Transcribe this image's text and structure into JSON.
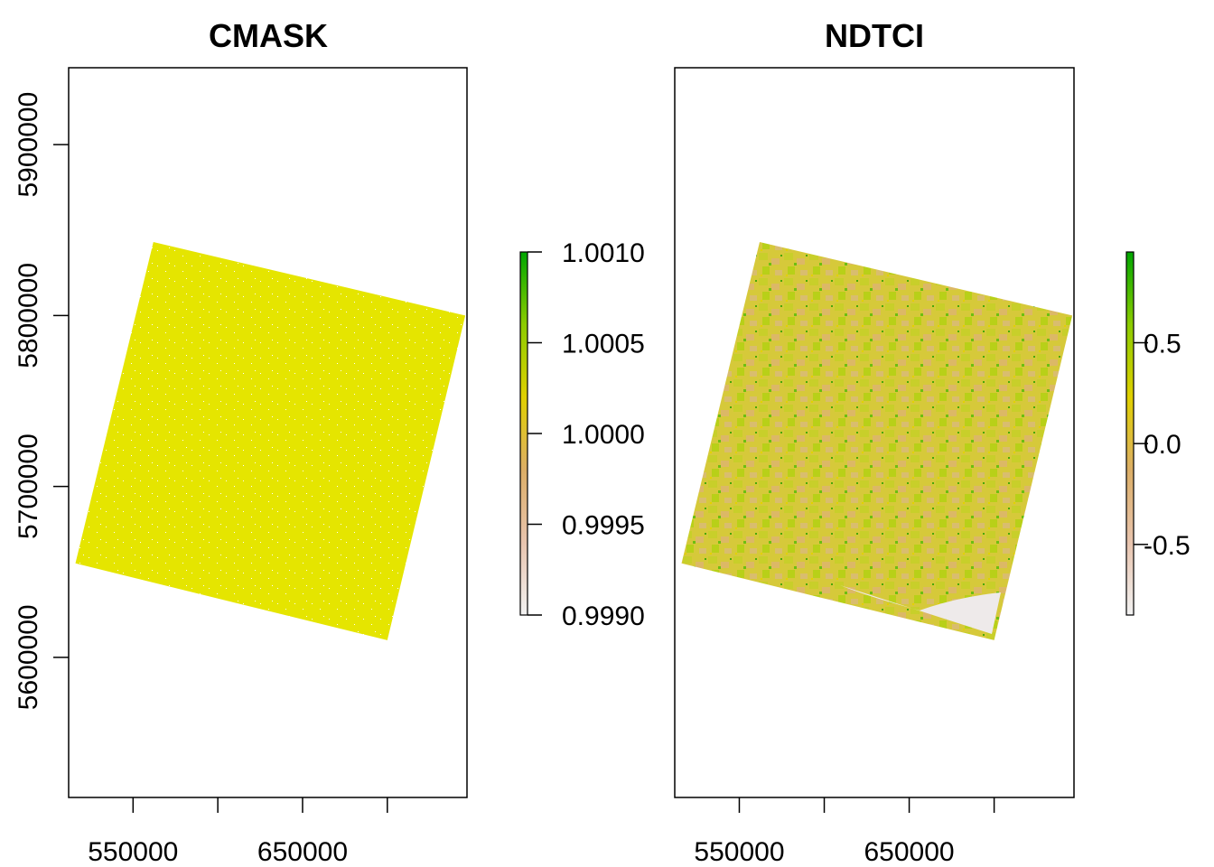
{
  "colors": {
    "ramp": [
      "#f2f2f2",
      "#e8c4ae",
      "#dcae66",
      "#e0d000",
      "#8ccc00",
      "#00a600"
    ],
    "cmask_fill": "#e5e500",
    "ndtci_base": "#d8c840",
    "ndtci_water": "#eeeaea",
    "axis": "#000000"
  },
  "chart_data": [
    {
      "type": "heatmap",
      "title": "CMASK",
      "xlabel": "",
      "ylabel": "",
      "xlim": [
        512000,
        747000
      ],
      "ylim": [
        5518000,
        5945000
      ],
      "x_ticks": [
        550000,
        600000,
        650000,
        700000
      ],
      "x_tick_labels": [
        "550000",
        "",
        "650000",
        ""
      ],
      "y_ticks": [
        5600000,
        5700000,
        5800000,
        5900000
      ],
      "y_tick_labels": [
        "5600000",
        "5700000",
        "5800000",
        "5900000"
      ],
      "scene_corners": [
        {
          "x": 562000,
          "y": 5843000
        },
        {
          "x": 746000,
          "y": 5800000
        },
        {
          "x": 700000,
          "y": 5610000
        },
        {
          "x": 516000,
          "y": 5655000
        }
      ],
      "cell_value": 1.0,
      "legend": {
        "min": 0.999,
        "max": 1.001,
        "ticks": [
          0.999,
          0.9995,
          1.0,
          1.0005,
          1.001
        ],
        "tick_labels": [
          "0.9990",
          "0.9995",
          "1.0000",
          "1.0005",
          "1.0010"
        ]
      }
    },
    {
      "type": "heatmap",
      "title": "NDTCI",
      "xlabel": "",
      "ylabel": "",
      "xlim": [
        512000,
        747000
      ],
      "ylim": [
        5518000,
        5945000
      ],
      "x_ticks": [
        550000,
        600000,
        650000,
        700000
      ],
      "x_tick_labels": [
        "550000",
        "",
        "650000",
        ""
      ],
      "y_ticks": [],
      "y_tick_labels": [],
      "scene_corners": [
        {
          "x": 562000,
          "y": 5843000
        },
        {
          "x": 746000,
          "y": 5800000
        },
        {
          "x": 700000,
          "y": 5610000
        },
        {
          "x": 516000,
          "y": 5655000
        }
      ],
      "legend": {
        "min": -0.85,
        "max": 0.95,
        "ticks": [
          -0.5,
          0.0,
          0.5
        ],
        "tick_labels": [
          "-0.5",
          "0.0",
          "0.5"
        ]
      }
    }
  ]
}
